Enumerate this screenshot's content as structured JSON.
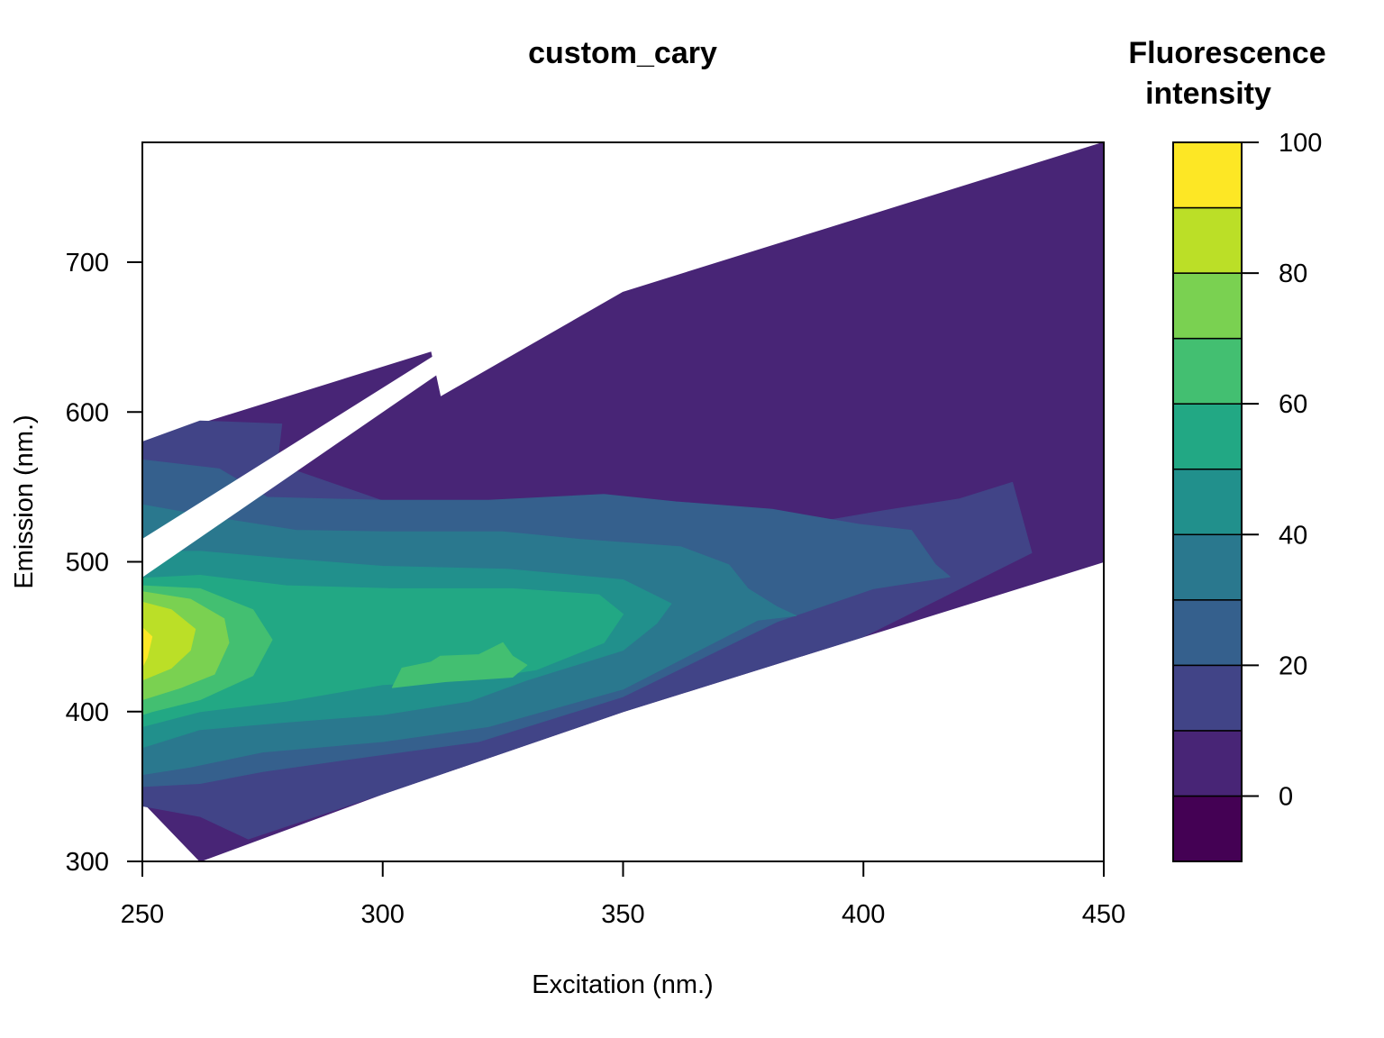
{
  "chart_data": {
    "type": "filled_contour",
    "title": "custom_cary",
    "xlabel": "Excitation (nm.)",
    "ylabel": "Emission (nm.)",
    "xlim": [
      250,
      450
    ],
    "ylim": [
      300,
      780
    ],
    "x_ticks": [
      "250",
      "300",
      "350",
      "400",
      "450"
    ],
    "y_ticks": [
      "300",
      "400",
      "500",
      "600",
      "700"
    ],
    "legend": {
      "title_lines": [
        "Fluorescence",
        "intensity"
      ],
      "position": "right",
      "range": [
        -10,
        100
      ],
      "ticks": [
        "0",
        "20",
        "40",
        "60",
        "80",
        "100"
      ],
      "breaks": [
        -10,
        0,
        10,
        20,
        30,
        40,
        50,
        60,
        70,
        80,
        90,
        100
      ],
      "colors": [
        "#440154",
        "#482576",
        "#414487",
        "#35608D",
        "#2A788E",
        "#21908C",
        "#22A884",
        "#43BF71",
        "#7AD151",
        "#BBDF27",
        "#FDE725"
      ]
    },
    "regions": [
      {
        "level": "0-10",
        "color": "#482576",
        "points": [
          [
            310,
            640
          ],
          [
            250,
            580
          ],
          [
            250,
            340
          ],
          [
            262,
            300
          ],
          [
            300,
            345
          ],
          [
            350,
            400
          ],
          [
            400,
            450
          ],
          [
            450,
            500
          ],
          [
            450,
            780
          ],
          [
            400,
            730
          ],
          [
            350,
            680
          ],
          [
            312,
            610
          ]
        ]
      },
      {
        "level": "10-20",
        "color": "#414487",
        "points": [
          [
            250,
            580
          ],
          [
            262,
            594
          ],
          [
            279,
            592
          ],
          [
            278,
            565
          ],
          [
            297,
            544
          ],
          [
            327,
            510
          ],
          [
            360,
            520
          ],
          [
            386,
            524
          ],
          [
            404,
            534
          ],
          [
            420,
            542
          ],
          [
            431,
            553
          ],
          [
            435,
            506
          ],
          [
            400,
            450
          ],
          [
            350,
            400
          ],
          [
            300,
            345
          ],
          [
            272,
            315
          ],
          [
            262,
            330
          ],
          [
            250,
            337
          ]
        ]
      },
      {
        "level": "20-30",
        "color": "#35608D",
        "points": [
          [
            250,
            568
          ],
          [
            266,
            562
          ],
          [
            276,
            543
          ],
          [
            300,
            541
          ],
          [
            322,
            541
          ],
          [
            346,
            545
          ],
          [
            361,
            540
          ],
          [
            381,
            535
          ],
          [
            399,
            525
          ],
          [
            410,
            521
          ],
          [
            415,
            498
          ],
          [
            418,
            490
          ],
          [
            402,
            482
          ],
          [
            382,
            460
          ],
          [
            350,
            410
          ],
          [
            320,
            380
          ],
          [
            297,
            370
          ],
          [
            275,
            360
          ],
          [
            262,
            352
          ],
          [
            250,
            350
          ]
        ]
      },
      {
        "level": "30-40",
        "color": "#2A788E",
        "points": [
          [
            250,
            538
          ],
          [
            264,
            530
          ],
          [
            282,
            521
          ],
          [
            301,
            520
          ],
          [
            325,
            520
          ],
          [
            341,
            515
          ],
          [
            362,
            510
          ],
          [
            372,
            498
          ],
          [
            376,
            482
          ],
          [
            382,
            470
          ],
          [
            386,
            464
          ],
          [
            378,
            461
          ],
          [
            350,
            415
          ],
          [
            322,
            390
          ],
          [
            300,
            380
          ],
          [
            275,
            373
          ],
          [
            260,
            363
          ],
          [
            250,
            358
          ]
        ]
      },
      {
        "level": "40-50",
        "color": "#21908C",
        "points": [
          [
            250,
            507
          ],
          [
            262,
            507
          ],
          [
            280,
            502
          ],
          [
            300,
            497
          ],
          [
            326,
            495
          ],
          [
            350,
            488
          ],
          [
            360,
            472
          ],
          [
            357,
            459
          ],
          [
            350,
            441
          ],
          [
            330,
            421
          ],
          [
            318,
            407
          ],
          [
            300,
            398
          ],
          [
            280,
            393
          ],
          [
            262,
            388
          ],
          [
            250,
            376
          ]
        ]
      },
      {
        "level": "50-60",
        "color": "#22A884",
        "points": [
          [
            250,
            489
          ],
          [
            262,
            491
          ],
          [
            280,
            484
          ],
          [
            302,
            482
          ],
          [
            327,
            482
          ],
          [
            345,
            478
          ],
          [
            350,
            465
          ],
          [
            346,
            446
          ],
          [
            332,
            428
          ],
          [
            318,
            421
          ],
          [
            300,
            418
          ],
          [
            280,
            407
          ],
          [
            262,
            400
          ],
          [
            250,
            390
          ]
        ]
      },
      {
        "level": "60-70",
        "color": "#43BF71",
        "points": [
          [
            250,
            484
          ],
          [
            262,
            482
          ],
          [
            273,
            468
          ],
          [
            277,
            448
          ],
          [
            273,
            424
          ],
          [
            262,
            408
          ],
          [
            252,
            400
          ],
          [
            250,
            398
          ]
        ]
      },
      {
        "level": "60-70 (inner)",
        "color": "#43BF71",
        "points": [
          [
            312,
            437
          ],
          [
            320,
            438
          ],
          [
            325,
            446
          ],
          [
            327,
            437
          ],
          [
            330,
            431
          ],
          [
            327,
            423
          ],
          [
            313,
            420
          ],
          [
            302,
            416
          ],
          [
            304,
            429
          ],
          [
            310,
            433
          ]
        ]
      },
      {
        "level": "70-80",
        "color": "#7AD151",
        "points": [
          [
            250,
            480
          ],
          [
            260,
            475
          ],
          [
            267,
            462
          ],
          [
            268,
            446
          ],
          [
            265,
            425
          ],
          [
            258,
            416
          ],
          [
            250,
            408
          ]
        ]
      },
      {
        "level": "80-90",
        "color": "#BBDF27",
        "points": [
          [
            250,
            473
          ],
          [
            256,
            468
          ],
          [
            261,
            455
          ],
          [
            260,
            441
          ],
          [
            256,
            429
          ],
          [
            250,
            421
          ]
        ]
      },
      {
        "level": "90-100",
        "color": "#FDE725",
        "points": [
          [
            250,
            456
          ],
          [
            252,
            450
          ],
          [
            251,
            436
          ],
          [
            250,
            430
          ]
        ]
      }
    ],
    "masked_bands": [
      {
        "points": [
          [
            250,
            490
          ],
          [
            250,
            515
          ],
          [
            312,
            640
          ],
          [
            318,
            640
          ]
        ]
      }
    ]
  }
}
